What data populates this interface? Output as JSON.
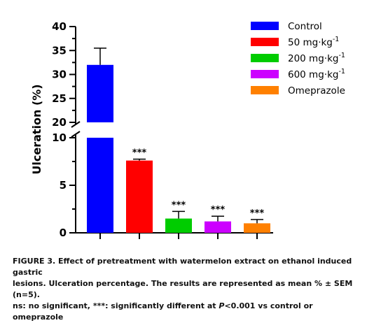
{
  "chart_data": {
    "type": "bar",
    "ylabel": "Ulceration (%)",
    "categories": [
      "Control",
      "50 mg·kg-1",
      "200 mg·kg-1",
      "600 mg·kg-1",
      "Omeprazole"
    ],
    "values": [
      32.0,
      7.6,
      1.5,
      1.2,
      1.0
    ],
    "errors": [
      3.5,
      0.15,
      0.75,
      0.55,
      0.4
    ],
    "significance": [
      "",
      "***",
      "***",
      "***",
      "***"
    ],
    "colors": [
      "#0000ff",
      "#ff0000",
      "#00cc00",
      "#cc00ff",
      "#ff8000"
    ],
    "legend_position": "top-right",
    "y_axis_break": {
      "lower_range": [
        0,
        10
      ],
      "upper_range": [
        20,
        40
      ]
    },
    "lower_ticks": [
      0,
      5,
      10
    ],
    "upper_ticks": [
      20,
      25,
      30,
      35,
      40
    ],
    "legend": [
      {
        "base": "Control",
        "sup": ""
      },
      {
        "base": "50 mg·kg",
        "sup": "-1"
      },
      {
        "base": "200 mg·kg",
        "sup": "-1"
      },
      {
        "base": "600 mg·kg",
        "sup": "-1"
      },
      {
        "base": "Omeprazole",
        "sup": ""
      }
    ]
  },
  "caption": {
    "line1": "FIGURE 3. Effect of pretreatment with watermelon extract on ethanol induced gastric",
    "line2": "lesions. Ulceration percentage. The results are represented as mean % ± SEM (n=5).",
    "line3_a": "ns: no significant, ***: significantly different at ",
    "line3_p": "P",
    "line3_b": "<0.001 vs control or omeprazole"
  }
}
